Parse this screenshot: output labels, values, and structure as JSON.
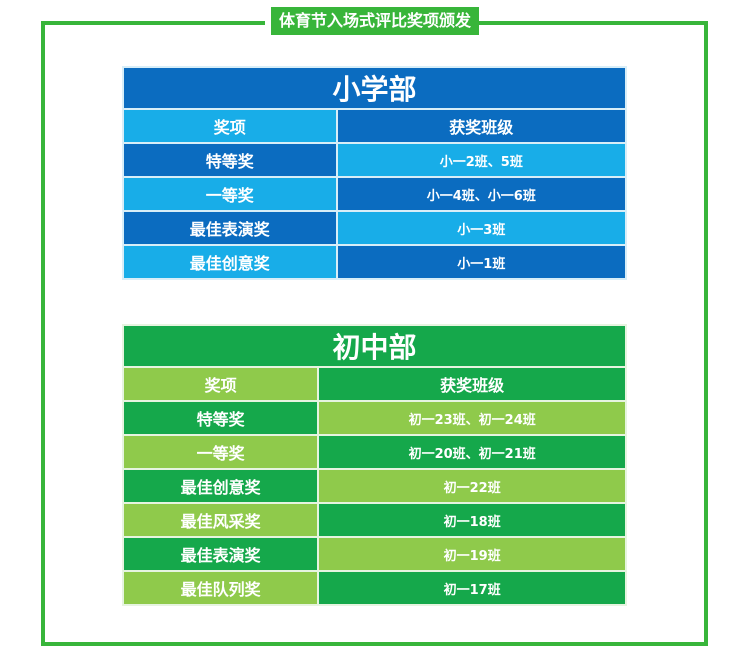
{
  "title": "体育节入场式评比奖项颁发",
  "colors": {
    "frame": "#38b53a",
    "primary_dark": "#0b6cc0",
    "primary_light": "#18ade8",
    "middle_dark": "#15a84b",
    "middle_light": "#8fca4b"
  },
  "primary": {
    "heading": "小学部",
    "col_award": "奖项",
    "col_class": "获奖班级",
    "rows": [
      {
        "award": "特等奖",
        "classes": "小一2班、5班"
      },
      {
        "award": "一等奖",
        "classes": "小一4班、小一6班"
      },
      {
        "award": "最佳表演奖",
        "classes": "小一3班"
      },
      {
        "award": "最佳创意奖",
        "classes": "小一1班"
      }
    ]
  },
  "middle": {
    "heading": "初中部",
    "col_award": "奖项",
    "col_class": "获奖班级",
    "rows": [
      {
        "award": "特等奖",
        "classes": "初一23班、初一24班"
      },
      {
        "award": "一等奖",
        "classes": "初一20班、初一21班"
      },
      {
        "award": "最佳创意奖",
        "classes": "初一22班"
      },
      {
        "award": "最佳风采奖",
        "classes": "初一18班"
      },
      {
        "award": "最佳表演奖",
        "classes": "初一19班"
      },
      {
        "award": "最佳队列奖",
        "classes": "初一17班"
      }
    ]
  }
}
